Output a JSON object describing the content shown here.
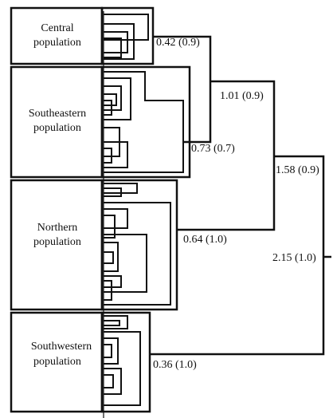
{
  "populations": [
    {
      "line1": "Central",
      "line2": "population"
    },
    {
      "line1": "Southeastern",
      "line2": "population"
    },
    {
      "line1": "Northern",
      "line2": "population"
    },
    {
      "line1": "Southwestern",
      "line2": "population"
    }
  ],
  "node_labels": {
    "central": "0.42 (0.9)",
    "southeastern": "0.73 (0.7)",
    "central_southeastern": "1.01 (0.9)",
    "northern": "0.64 (1.0)",
    "ce_se_northern": "1.58 (0.9)",
    "root": "2.15 (1.0)",
    "southwestern": "0.36 (1.0)"
  },
  "colors": {
    "line": "#111111",
    "background": "#ffffff"
  }
}
